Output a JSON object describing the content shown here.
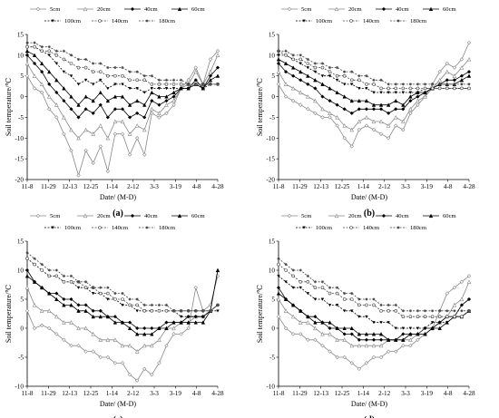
{
  "figure": {
    "series_names": [
      "5cm",
      "20cm",
      "40cm",
      "60cm",
      "100cm",
      "140cm",
      "180cm"
    ],
    "x_ticks": [
      "11-8",
      "11-29",
      "12-13",
      "12-25",
      "1-14",
      "2-12",
      "3-3",
      "3-19",
      "4-8",
      "4-28"
    ],
    "ylabel": "Soil temperature/℃",
    "xlabel": "Date/ (M-D)"
  },
  "chart_data": [
    {
      "type": "line",
      "caption": "(a)",
      "ylim": [
        -20,
        15
      ],
      "yticks": [
        -20,
        -15,
        -10,
        -5,
        0,
        5,
        10,
        15
      ],
      "series": [
        {
          "name": "5cm",
          "values": [
            5,
            2,
            1,
            -3,
            -5,
            -9,
            -13,
            -19,
            -13,
            -16,
            -12,
            -18,
            -9,
            -9,
            -14,
            -10,
            -14,
            -4,
            -5,
            -4,
            -2,
            2,
            4,
            7,
            3,
            9,
            11
          ]
        },
        {
          "name": "20cm",
          "values": [
            8,
            5,
            3,
            0,
            -2,
            -5,
            -8,
            -10,
            -8,
            -9,
            -7,
            -10,
            -6,
            -6,
            -9,
            -7,
            -8,
            -3,
            -4,
            -2,
            -1,
            2,
            3,
            6,
            3,
            6,
            10
          ]
        },
        {
          "name": "40cm",
          "values": [
            10,
            8,
            6,
            3,
            1,
            -1,
            -3,
            -5,
            -3,
            -4,
            -2,
            -5,
            -3,
            -3,
            -5,
            -4,
            -5,
            -1,
            -2,
            -1,
            0,
            2,
            2,
            4,
            2,
            5,
            7
          ]
        },
        {
          "name": "60cm",
          "values": [
            11,
            10,
            8,
            6,
            4,
            2,
            0,
            -2,
            0,
            -1,
            1,
            -1,
            0,
            0,
            -2,
            -1,
            -2,
            1,
            0,
            0,
            1,
            2,
            2,
            3,
            2,
            4,
            5
          ]
        },
        {
          "name": "100cm",
          "values": [
            12,
            12,
            11,
            10,
            8,
            6,
            5,
            3,
            4,
            3,
            4,
            2,
            3,
            3,
            2,
            2,
            1,
            2,
            2,
            2,
            2,
            2,
            2,
            3,
            2,
            3,
            3
          ]
        },
        {
          "name": "140cm",
          "values": [
            12,
            12,
            11,
            11,
            10,
            9,
            8,
            7,
            7,
            6,
            6,
            5,
            5,
            5,
            4,
            4,
            4,
            3,
            3,
            3,
            3,
            3,
            3,
            3,
            3,
            3,
            3
          ]
        },
        {
          "name": "180cm",
          "values": [
            13,
            13,
            12,
            12,
            11,
            11,
            10,
            9,
            9,
            8,
            8,
            7,
            7,
            7,
            6,
            6,
            5,
            5,
            4,
            4,
            4,
            4,
            3,
            3,
            3,
            3,
            3
          ]
        }
      ]
    },
    {
      "type": "line",
      "caption": "(b)",
      "ylim": [
        -20,
        15
      ],
      "yticks": [
        -20,
        -15,
        -10,
        -5,
        0,
        5,
        10,
        15
      ],
      "series": [
        {
          "name": "5cm",
          "values": [
            3,
            0,
            -1,
            -2,
            -3,
            -4,
            -5,
            -5,
            -7,
            -10,
            -12,
            -8,
            -7,
            -8,
            -9,
            -10,
            -7,
            -8,
            -4,
            -2,
            0,
            3,
            6,
            8,
            7,
            9,
            13
          ]
        },
        {
          "name": "20cm",
          "values": [
            6,
            3,
            2,
            1,
            0,
            -1,
            -3,
            -4,
            -5,
            -7,
            -8,
            -6,
            -5,
            -6,
            -6,
            -7,
            -5,
            -6,
            -3,
            -1,
            0,
            2,
            4,
            6,
            5,
            7,
            9
          ]
        },
        {
          "name": "40cm",
          "values": [
            8,
            6,
            5,
            4,
            3,
            2,
            0,
            -1,
            -2,
            -3,
            -4,
            -3,
            -3,
            -3,
            -3,
            -4,
            -3,
            -3,
            -1,
            0,
            1,
            2,
            3,
            4,
            4,
            5,
            6
          ]
        },
        {
          "name": "60cm",
          "values": [
            9,
            8,
            7,
            6,
            5,
            4,
            3,
            2,
            1,
            0,
            -1,
            -1,
            -1,
            -2,
            -2,
            -2,
            -1,
            -2,
            0,
            1,
            1,
            2,
            3,
            3,
            3,
            4,
            5
          ]
        },
        {
          "name": "100cm",
          "values": [
            10,
            10,
            9,
            8,
            7,
            6,
            5,
            5,
            4,
            3,
            3,
            2,
            2,
            1,
            1,
            1,
            1,
            1,
            1,
            1,
            2,
            2,
            2,
            2,
            2,
            2,
            2
          ]
        },
        {
          "name": "140cm",
          "values": [
            11,
            10,
            9,
            9,
            8,
            7,
            7,
            6,
            5,
            5,
            4,
            4,
            3,
            3,
            2,
            2,
            2,
            2,
            2,
            2,
            2,
            2,
            2,
            2,
            2,
            2,
            2
          ]
        },
        {
          "name": "180cm",
          "values": [
            11,
            11,
            10,
            10,
            9,
            8,
            8,
            7,
            7,
            6,
            6,
            5,
            5,
            4,
            4,
            3,
            3,
            3,
            3,
            3,
            3,
            3,
            3,
            3,
            3,
            3,
            3
          ]
        }
      ]
    },
    {
      "type": "line",
      "caption": "(c)",
      "ylim": [
        -10,
        15
      ],
      "yticks": [
        -10,
        -5,
        0,
        5,
        10,
        15
      ],
      "series": [
        {
          "name": "5cm",
          "values": [
            3,
            0,
            0.5,
            0,
            -1,
            -2,
            -3,
            -3,
            -4,
            -4,
            -5,
            -5,
            -6,
            -6,
            -8,
            -9,
            -7,
            -8,
            -6,
            -3,
            -1,
            -1,
            0,
            7,
            3,
            4,
            9
          ]
        },
        {
          "name": "20cm",
          "values": [
            7,
            4,
            3,
            3,
            2,
            1,
            1,
            0,
            0,
            -1,
            -2,
            -2,
            -2,
            -3,
            -3,
            -4,
            -3,
            -3,
            -2,
            0,
            0,
            1,
            1,
            2,
            2,
            3,
            10
          ]
        },
        {
          "name": "40cm",
          "values": [
            10,
            8,
            7,
            6,
            6,
            5,
            5,
            4,
            4,
            3,
            3,
            2,
            2,
            1,
            1,
            0,
            0,
            0,
            0,
            1,
            1,
            1,
            2,
            2,
            2,
            3,
            4
          ]
        },
        {
          "name": "60cm",
          "values": [
            9,
            8,
            7,
            6,
            5,
            4,
            4,
            3,
            3,
            2,
            2,
            2,
            1,
            1,
            0,
            -1,
            -1,
            -1,
            0,
            0,
            1,
            1,
            1,
            1,
            1,
            3,
            10
          ]
        },
        {
          "name": "100cm",
          "values": [
            12,
            11,
            10,
            9,
            9,
            8,
            8,
            7,
            7,
            6,
            6,
            5,
            5,
            4,
            4,
            3,
            3,
            3,
            3,
            3,
            3,
            2,
            2,
            2,
            2,
            3,
            3
          ]
        },
        {
          "name": "140cm",
          "values": [
            12,
            11,
            10,
            9,
            9,
            8,
            8,
            8,
            7,
            7,
            6,
            6,
            5,
            5,
            4,
            4,
            3,
            3,
            3,
            3,
            3,
            3,
            3,
            3,
            3,
            3,
            4
          ]
        },
        {
          "name": "180cm",
          "values": [
            13,
            12,
            11,
            10,
            10,
            9,
            9,
            8,
            8,
            7,
            7,
            7,
            6,
            6,
            5,
            5,
            4,
            4,
            4,
            4,
            3,
            3,
            3,
            3,
            3,
            3,
            4
          ]
        }
      ]
    },
    {
      "type": "line",
      "caption": "(d)",
      "ylim": [
        -10,
        15
      ],
      "yticks": [
        -10,
        -5,
        0,
        5,
        10,
        15
      ],
      "series": [
        {
          "name": "5cm",
          "values": [
            2,
            0,
            -1,
            -1,
            -2,
            -2,
            -3,
            -4,
            -5,
            -5,
            -6,
            -7,
            -6,
            -5,
            -5,
            -4,
            -4,
            -3,
            -3,
            -2,
            -1,
            0,
            3,
            6,
            7,
            8,
            9
          ]
        },
        {
          "name": "20cm",
          "values": [
            5,
            3,
            2,
            1,
            1,
            0,
            -1,
            -1,
            -2,
            -2,
            -3,
            -3,
            -3,
            -3,
            -3,
            -2,
            -2,
            -2,
            -2,
            -1,
            -1,
            0,
            1,
            2,
            4,
            5,
            8
          ]
        },
        {
          "name": "40cm",
          "values": [
            7,
            5,
            4,
            3,
            2,
            2,
            1,
            0,
            0,
            -1,
            -1,
            -2,
            -2,
            -2,
            -2,
            -2,
            -2,
            -1,
            -1,
            -1,
            0,
            0,
            1,
            2,
            2,
            4,
            5
          ]
        },
        {
          "name": "60cm",
          "values": [
            6,
            5,
            4,
            3,
            2,
            1,
            1,
            1,
            0,
            0,
            0,
            -1,
            -1,
            -1,
            -1,
            -2,
            -2,
            -2,
            -1,
            -1,
            -1,
            0,
            0,
            1,
            2,
            2,
            3
          ]
        },
        {
          "name": "100cm",
          "values": [
            9,
            8,
            7,
            7,
            6,
            5,
            5,
            4,
            4,
            3,
            3,
            2,
            2,
            1,
            1,
            1,
            0,
            0,
            0,
            0,
            0,
            1,
            1,
            1,
            2,
            2,
            3
          ]
        },
        {
          "name": "140cm",
          "values": [
            11,
            10,
            9,
            8,
            8,
            7,
            7,
            6,
            6,
            5,
            5,
            4,
            4,
            4,
            3,
            3,
            3,
            2,
            2,
            2,
            2,
            2,
            2,
            2,
            2,
            2,
            3
          ]
        },
        {
          "name": "180cm",
          "values": [
            12,
            11,
            10,
            10,
            9,
            8,
            8,
            7,
            7,
            6,
            6,
            5,
            5,
            5,
            4,
            4,
            4,
            3,
            3,
            3,
            3,
            3,
            3,
            3,
            3,
            3,
            3
          ]
        }
      ]
    }
  ]
}
